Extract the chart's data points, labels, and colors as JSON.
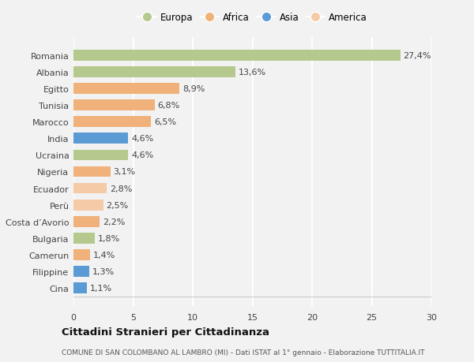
{
  "countries": [
    "Romania",
    "Albania",
    "Egitto",
    "Tunisia",
    "Marocco",
    "India",
    "Ucraina",
    "Nigeria",
    "Ecuador",
    "Perù",
    "Costa d’Avorio",
    "Bulgaria",
    "Camerun",
    "Filippine",
    "Cina"
  ],
  "values": [
    27.4,
    13.6,
    8.9,
    6.8,
    6.5,
    4.6,
    4.6,
    3.1,
    2.8,
    2.5,
    2.2,
    1.8,
    1.4,
    1.3,
    1.1
  ],
  "labels": [
    "27,4%",
    "13,6%",
    "8,9%",
    "6,8%",
    "6,5%",
    "4,6%",
    "4,6%",
    "3,1%",
    "2,8%",
    "2,5%",
    "2,2%",
    "1,8%",
    "1,4%",
    "1,3%",
    "1,1%"
  ],
  "colors": [
    "#b5c98e",
    "#b5c98e",
    "#f0b27a",
    "#f0b27a",
    "#f0b27a",
    "#5b9bd5",
    "#b5c98e",
    "#f0b27a",
    "#f5cba7",
    "#f5cba7",
    "#f0b27a",
    "#b5c98e",
    "#f0b27a",
    "#5b9bd5",
    "#5b9bd5"
  ],
  "legend_labels": [
    "Europa",
    "Africa",
    "Asia",
    "America"
  ],
  "legend_colors": [
    "#b5c98e",
    "#f0b27a",
    "#5b9bd5",
    "#f5cba7"
  ],
  "title": "Cittadini Stranieri per Cittadinanza",
  "subtitle": "COMUNE DI SAN COLOMBANO AL LAMBRO (MI) - Dati ISTAT al 1° gennaio - Elaborazione TUTTITALIA.IT",
  "xlim": [
    0,
    30
  ],
  "xticks": [
    0,
    5,
    10,
    15,
    20,
    25,
    30
  ],
  "bg_color": "#f2f2f2",
  "grid_color": "#ffffff",
  "bar_height": 0.65,
  "label_fontsize": 8,
  "ytick_fontsize": 8,
  "xtick_fontsize": 8
}
